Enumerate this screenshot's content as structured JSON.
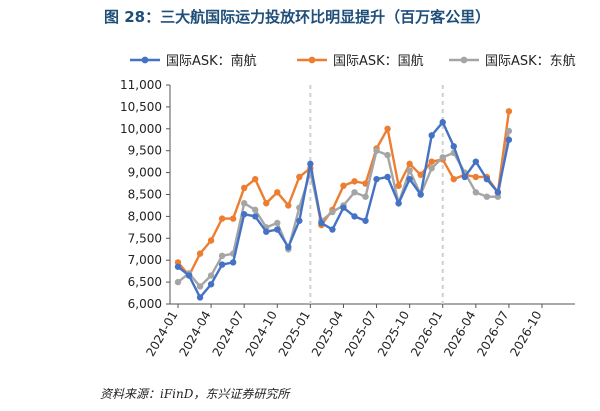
{
  "title": "图 28：三大航国际运力投放环比明显提升（百万客公里）",
  "source": "资料来源：iFinD，东兴证券研究所",
  "chart_data": {
    "type": "line",
    "title": "图 28：三大航国际运力投放环比明显提升（百万客公里）",
    "ylim": [
      6000,
      11000
    ],
    "yticks": [
      6000,
      6500,
      7000,
      7500,
      8000,
      8500,
      9000,
      9500,
      10000,
      10500,
      11000
    ],
    "xticks": [
      "2024-01",
      "2024-04",
      "2024-07",
      "2024-10",
      "2025-01",
      "2025-04",
      "2025-07",
      "2025-10",
      "2026-01",
      "2026-04",
      "2026-07",
      "2026-10"
    ],
    "grid": false,
    "legend": "top",
    "x": [
      "2024-01",
      "2024-02",
      "2024-03",
      "2024-04",
      "2024-05",
      "2024-06",
      "2024-07",
      "2024-08",
      "2024-09",
      "2024-10",
      "2024-11",
      "2024-12",
      "2025-01",
      "2025-02",
      "2025-03",
      "2025-04",
      "2025-05",
      "2025-06",
      "2025-07",
      "2025-08",
      "2025-09",
      "2025-10",
      "2025-11",
      "2025-12",
      "2026-01",
      "2026-02",
      "2026-03",
      "2026-04",
      "2026-05",
      "2026-06",
      "2026-07"
    ],
    "series": [
      {
        "name": "国际ASK：南航",
        "color": "#4472c4",
        "values": [
          6850,
          6650,
          6150,
          6450,
          6900,
          6950,
          8050,
          8000,
          7650,
          7700,
          7300,
          7900,
          9200,
          7850,
          7700,
          8200,
          8000,
          7900,
          8850,
          8900,
          8300,
          8850,
          8500,
          9850,
          10150,
          9600,
          8900,
          9250,
          8850,
          8550,
          9750
        ]
      },
      {
        "name": "国际ASK：国航",
        "color": "#ed7d31",
        "values": [
          6950,
          6650,
          7150,
          7450,
          7950,
          7950,
          8650,
          8850,
          8300,
          8550,
          8250,
          8900,
          9100,
          7800,
          8150,
          8700,
          8800,
          8750,
          9550,
          10000,
          8700,
          9200,
          8950,
          9250,
          9300,
          8850,
          8950,
          8900,
          8900,
          8550,
          10400
        ]
      },
      {
        "name": "国际ASK：东航",
        "color": "#a5a5a5",
        "values": [
          6500,
          6700,
          6400,
          6650,
          7100,
          7150,
          8300,
          8150,
          7750,
          7850,
          7250,
          8200,
          9000,
          7900,
          8100,
          8250,
          8550,
          8450,
          9500,
          9400,
          8300,
          9050,
          8500,
          9100,
          9350,
          9450,
          9000,
          8550,
          8450,
          8450,
          9950
        ]
      }
    ]
  }
}
